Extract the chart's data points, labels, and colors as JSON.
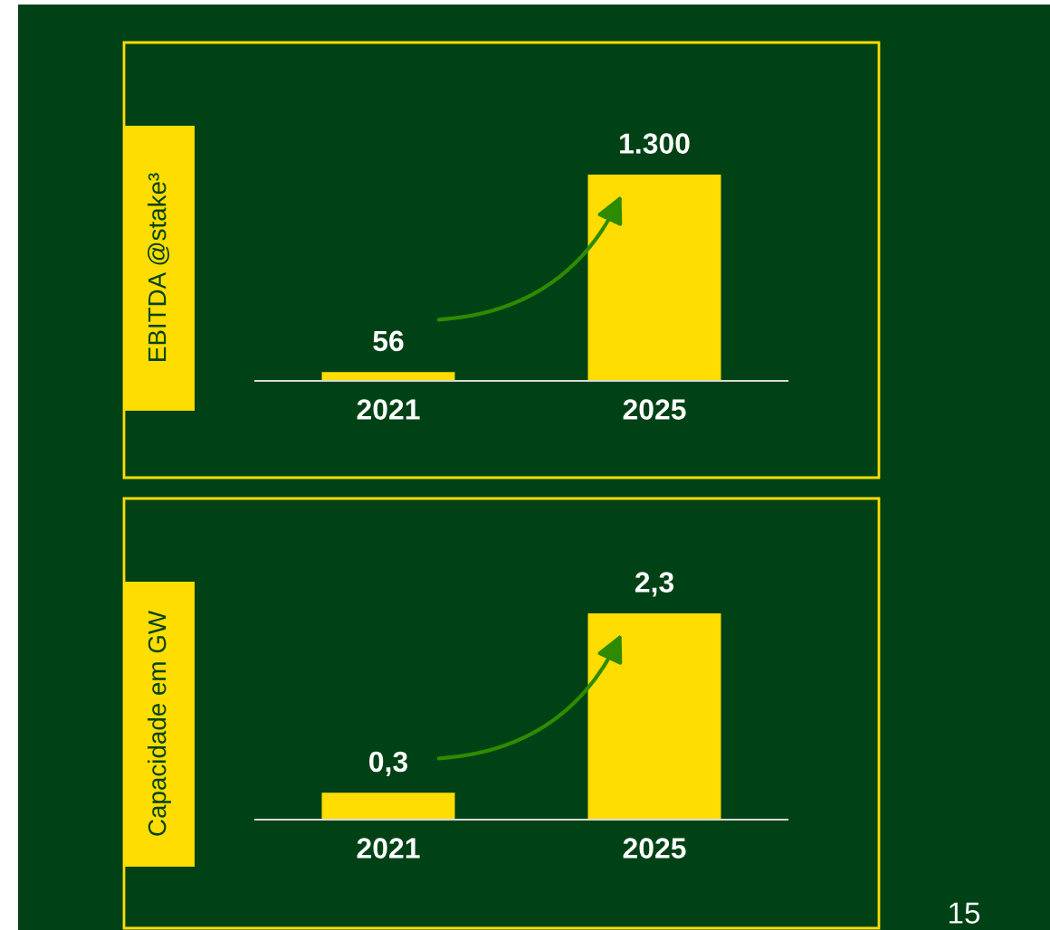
{
  "chart_data": [
    {
      "type": "bar",
      "ylabel": "EBITDA @stake³",
      "categories": [
        "2021",
        "2025"
      ],
      "values": [
        56,
        1300
      ],
      "value_labels": [
        "56",
        "1.300"
      ],
      "color": "#ffdd00",
      "tick_labels": "x",
      "grid": false,
      "legend": false
    },
    {
      "type": "bar",
      "ylabel": "Capacidade em GW",
      "categories": [
        "2021",
        "2025"
      ],
      "values": [
        0.3,
        2.3
      ],
      "value_labels": [
        "0,3",
        "2,3"
      ],
      "color": "#ffdd00",
      "tick_labels": "x",
      "grid": false,
      "legend": false,
      "annotations": [
        "15"
      ]
    }
  ]
}
